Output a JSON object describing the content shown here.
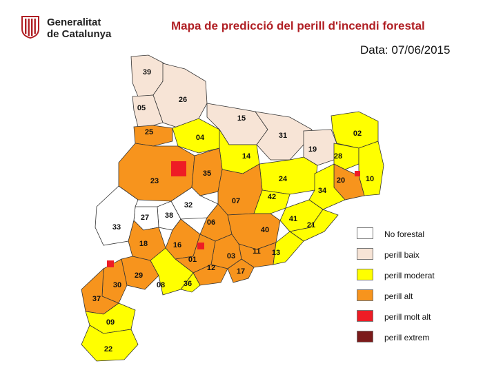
{
  "header": {
    "logo_line1": "Generalitat",
    "logo_line2": "de Catalunya",
    "title": "Mapa de predicció del perill d'incendi forestal",
    "date_label": "Data:",
    "date_value": "07/06/2015"
  },
  "colors": {
    "title": "#b01f24",
    "no_forestal": "#ffffff",
    "perill_baix": "#f7e4d6",
    "perill_moderat": "#ffff00",
    "perill_alt": "#f7941d",
    "perill_molt_alt": "#ee1c25",
    "perill_extrem": "#7b1a1a",
    "border": "#333333"
  },
  "legend": [
    {
      "label": "No forestal",
      "color": "#ffffff"
    },
    {
      "label": "perill baix",
      "color": "#f7e4d6"
    },
    {
      "label": "perill moderat",
      "color": "#ffff00"
    },
    {
      "label": "perill alt",
      "color": "#f7941d"
    },
    {
      "label": "perill molt alt",
      "color": "#ee1c25"
    },
    {
      "label": "perill extrem",
      "color": "#7b1a1a"
    }
  ],
  "regions": [
    {
      "code": "39",
      "risk": "perill_baix"
    },
    {
      "code": "26",
      "risk": "perill_baix"
    },
    {
      "code": "05",
      "risk": "perill_baix"
    },
    {
      "code": "15",
      "risk": "perill_baix"
    },
    {
      "code": "31",
      "risk": "perill_baix"
    },
    {
      "code": "02",
      "risk": "perill_moderat"
    },
    {
      "code": "25",
      "risk": "perill_alt"
    },
    {
      "code": "04",
      "risk": "perill_moderat"
    },
    {
      "code": "19",
      "risk": "perill_baix"
    },
    {
      "code": "28",
      "risk": "perill_moderat"
    },
    {
      "code": "14",
      "risk": "perill_moderat"
    },
    {
      "code": "10",
      "risk": "perill_moderat"
    },
    {
      "code": "23",
      "risk": "perill_alt"
    },
    {
      "code": "35",
      "risk": "perill_alt"
    },
    {
      "code": "24",
      "risk": "perill_moderat"
    },
    {
      "code": "20",
      "risk": "perill_alt"
    },
    {
      "code": "34",
      "risk": "perill_moderat"
    },
    {
      "code": "07",
      "risk": "perill_alt"
    },
    {
      "code": "42",
      "risk": "perill_moderat"
    },
    {
      "code": "32",
      "risk": "no_forestal"
    },
    {
      "code": "38",
      "risk": "no_forestal"
    },
    {
      "code": "27",
      "risk": "no_forestal"
    },
    {
      "code": "06",
      "risk": "perill_alt"
    },
    {
      "code": "41",
      "risk": "perill_moderat"
    },
    {
      "code": "33",
      "risk": "no_forestal"
    },
    {
      "code": "40",
      "risk": "perill_alt"
    },
    {
      "code": "21",
      "risk": "perill_moderat"
    },
    {
      "code": "18",
      "risk": "perill_alt"
    },
    {
      "code": "16",
      "risk": "perill_alt"
    },
    {
      "code": "11",
      "risk": "perill_alt"
    },
    {
      "code": "13",
      "risk": "perill_moderat"
    },
    {
      "code": "03",
      "risk": "perill_alt"
    },
    {
      "code": "01",
      "risk": "perill_alt"
    },
    {
      "code": "12",
      "risk": "perill_alt"
    },
    {
      "code": "17",
      "risk": "perill_alt"
    },
    {
      "code": "29",
      "risk": "perill_alt"
    },
    {
      "code": "30",
      "risk": "perill_alt"
    },
    {
      "code": "08",
      "risk": "perill_moderat"
    },
    {
      "code": "36",
      "risk": "perill_moderat"
    },
    {
      "code": "37",
      "risk": "perill_alt"
    },
    {
      "code": "09",
      "risk": "perill_moderat"
    },
    {
      "code": "22",
      "risk": "perill_moderat"
    }
  ]
}
